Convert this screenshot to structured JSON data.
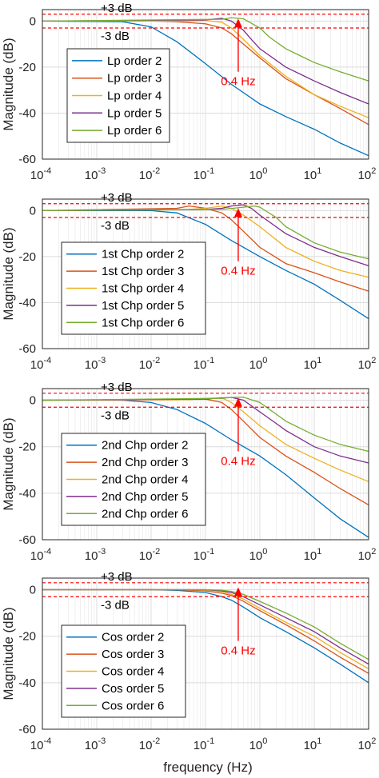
{
  "colors": {
    "order2": "#0072BD",
    "order3": "#D95319",
    "order4": "#EDB120",
    "order5": "#7E2F8E",
    "order6": "#77AC30",
    "threshold": "#ff0000",
    "annotation": "#ff0000",
    "grid": "#dcdcdc",
    "axis": "#262626"
  },
  "xlabel": "frequency (Hz)",
  "chart_data": [
    {
      "type": "line",
      "xscale": "log",
      "xlim": [
        0.0001,
        100
      ],
      "ylim": [
        -60,
        5
      ],
      "ylabel": "Magnitude (dB)",
      "xticks": [
        0.0001,
        0.001,
        0.01,
        0.1,
        1,
        10,
        100
      ],
      "xticklabels": [
        {
          "b": "10",
          "e": "-4"
        },
        {
          "b": "10",
          "e": "-3"
        },
        {
          "b": "10",
          "e": "-2"
        },
        {
          "b": "10",
          "e": "-1"
        },
        {
          "b": "10",
          "e": "0"
        },
        {
          "b": "10",
          "e": "1"
        },
        {
          "b": "10",
          "e": "2"
        }
      ],
      "yticks": [
        0,
        -20,
        -40,
        -60
      ],
      "yticklabels": [
        "0",
        "-20",
        "-40",
        "-60"
      ],
      "grid": true,
      "legend_position": "bottom-left",
      "reference_lines": [
        {
          "y": 3,
          "label": "+3 dB"
        },
        {
          "y": -3,
          "label": "-3 dB"
        }
      ],
      "annotation": {
        "text": "0.4 Hz",
        "x": 0.4
      },
      "series": [
        {
          "name": "Lp order 2",
          "x": [
            0.0001,
            0.003,
            0.01,
            0.03,
            0.1,
            0.3,
            1,
            3,
            10,
            30,
            100
          ],
          "y": [
            0,
            -0.3,
            -2.5,
            -9,
            -18.5,
            -27.5,
            -36,
            -41.5,
            -47,
            -53,
            -58.5
          ]
        },
        {
          "name": "Lp order 3",
          "x": [
            0.0001,
            0.01,
            0.03,
            0.1,
            0.2,
            0.3,
            0.5,
            1,
            3,
            10,
            30,
            100
          ],
          "y": [
            0,
            0,
            -0.3,
            -1.2,
            -3,
            -5.5,
            -10,
            -16,
            -25,
            -32,
            -38,
            -45
          ]
        },
        {
          "name": "Lp order 4",
          "x": [
            0.0001,
            0.05,
            0.1,
            0.2,
            0.3,
            0.5,
            1,
            3,
            10,
            30,
            100
          ],
          "y": [
            0,
            0,
            0.3,
            -0.5,
            -3,
            -8,
            -15,
            -24,
            -32,
            -37,
            -42
          ]
        },
        {
          "name": "Lp order 5",
          "x": [
            0.0001,
            0.1,
            0.2,
            0.3,
            0.5,
            0.7,
            1,
            3,
            10,
            30,
            100
          ],
          "y": [
            0,
            0.5,
            1.2,
            0,
            -4,
            -8,
            -12,
            -20,
            -26,
            -31,
            -36
          ]
        },
        {
          "name": "Lp order 6",
          "x": [
            0.0001,
            0.2,
            0.3,
            0.5,
            1,
            1.5,
            3,
            10,
            30,
            100
          ],
          "y": [
            0,
            0.8,
            1.5,
            1,
            -3,
            -7,
            -12,
            -18,
            -22,
            -26
          ]
        }
      ]
    },
    {
      "type": "line",
      "xscale": "log",
      "xlim": [
        0.0001,
        100
      ],
      "ylim": [
        -60,
        5
      ],
      "ylabel": "Magnitude (dB)",
      "xticks": [
        0.0001,
        0.001,
        0.01,
        0.1,
        1,
        10,
        100
      ],
      "xticklabels": [
        {
          "b": "10",
          "e": "-4"
        },
        {
          "b": "10",
          "e": "-3"
        },
        {
          "b": "10",
          "e": "-2"
        },
        {
          "b": "10",
          "e": "-1"
        },
        {
          "b": "10",
          "e": "0"
        },
        {
          "b": "10",
          "e": "1"
        },
        {
          "b": "10",
          "e": "2"
        }
      ],
      "yticks": [
        0,
        -20,
        -40,
        -60
      ],
      "yticklabels": [
        "0",
        "-20",
        "-40",
        "-60"
      ],
      "grid": true,
      "legend_position": "bottom-left",
      "reference_lines": [
        {
          "y": 3,
          "label": "+3 dB"
        },
        {
          "y": -3,
          "label": "-3 dB"
        }
      ],
      "annotation": {
        "text": "0.4 Hz",
        "x": 0.4
      },
      "series": [
        {
          "name": "1st Chp order 2",
          "x": [
            0.0001,
            0.003,
            0.01,
            0.03,
            0.1,
            0.3,
            1,
            3,
            10,
            30,
            100
          ],
          "y": [
            0,
            0,
            0,
            -1,
            -6,
            -13,
            -20,
            -26,
            -32,
            -39,
            -47
          ]
        },
        {
          "name": "1st Chp order 3",
          "x": [
            0.0001,
            0.03,
            0.05,
            0.1,
            0.2,
            0.3,
            0.5,
            1,
            3,
            10,
            30,
            100
          ],
          "y": [
            0,
            1,
            2,
            1,
            -1,
            -4,
            -9,
            -16,
            -23,
            -27,
            -31,
            -35
          ]
        },
        {
          "name": "1st Chp order 4",
          "x": [
            0.0001,
            0.05,
            0.1,
            0.2,
            0.3,
            0.5,
            1,
            3,
            10,
            30,
            100
          ],
          "y": [
            0,
            0.5,
            1,
            2,
            1,
            -2,
            -7,
            -16,
            -22,
            -26,
            -29
          ]
        },
        {
          "name": "1st Chp order 5",
          "x": [
            0.0001,
            0.1,
            0.2,
            0.3,
            0.5,
            0.7,
            1,
            3,
            10,
            30,
            100
          ],
          "y": [
            0,
            0.5,
            1,
            2,
            2.5,
            1,
            -2,
            -10,
            -16,
            -20,
            -24
          ]
        },
        {
          "name": "1st Chp order 6",
          "x": [
            0.0001,
            0.2,
            0.5,
            0.8,
            1,
            2,
            3,
            10,
            30,
            100
          ],
          "y": [
            0,
            0.5,
            1.5,
            2,
            1.5,
            -3,
            -7,
            -14,
            -18,
            -21
          ]
        }
      ]
    },
    {
      "type": "line",
      "xscale": "log",
      "xlim": [
        0.0001,
        100
      ],
      "ylim": [
        -60,
        5
      ],
      "ylabel": "Magnitude (dB)",
      "xticks": [
        0.0001,
        0.001,
        0.01,
        0.1,
        1,
        10,
        100
      ],
      "xticklabels": [
        {
          "b": "10",
          "e": "-4"
        },
        {
          "b": "10",
          "e": "-3"
        },
        {
          "b": "10",
          "e": "-2"
        },
        {
          "b": "10",
          "e": "-1"
        },
        {
          "b": "10",
          "e": "0"
        },
        {
          "b": "10",
          "e": "1"
        },
        {
          "b": "10",
          "e": "2"
        }
      ],
      "yticks": [
        0,
        -20,
        -40,
        -60
      ],
      "yticklabels": [
        "0",
        "-20",
        "-40",
        "-60"
      ],
      "grid": true,
      "legend_position": "bottom-left",
      "reference_lines": [
        {
          "y": 3,
          "label": "+3 dB"
        },
        {
          "y": -3,
          "label": "-3 dB"
        }
      ],
      "annotation": {
        "text": "0.4 Hz",
        "x": 0.4
      },
      "series": [
        {
          "name": "2nd Chp order 2",
          "x": [
            0.0001,
            0.003,
            0.01,
            0.03,
            0.1,
            0.3,
            1,
            3,
            10,
            30,
            100
          ],
          "y": [
            0,
            0,
            -1,
            -4,
            -10,
            -17,
            -24,
            -32,
            -42,
            -51,
            -59
          ]
        },
        {
          "name": "2nd Chp order 3",
          "x": [
            0.0001,
            0.03,
            0.1,
            0.2,
            0.3,
            0.5,
            1,
            3,
            10,
            30,
            100
          ],
          "y": [
            0,
            0.2,
            0.5,
            -1,
            -4,
            -9,
            -16,
            -24,
            -31,
            -38,
            -45
          ]
        },
        {
          "name": "2nd Chp order 4",
          "x": [
            0.0001,
            0.05,
            0.1,
            0.2,
            0.3,
            0.5,
            1,
            3,
            10,
            30,
            100
          ],
          "y": [
            0,
            0.3,
            0.8,
            1,
            -1,
            -5,
            -11,
            -19,
            -25,
            -30,
            -35
          ]
        },
        {
          "name": "2nd Chp order 5",
          "x": [
            0.0001,
            0.1,
            0.2,
            0.3,
            0.5,
            1,
            2,
            3,
            10,
            30,
            100
          ],
          "y": [
            0,
            0.5,
            1,
            1.2,
            0,
            -5,
            -10,
            -13,
            -20,
            -24,
            -27
          ]
        },
        {
          "name": "2nd Chp order 6",
          "x": [
            0.0001,
            0.2,
            0.3,
            0.5,
            1,
            2,
            3,
            10,
            30,
            100
          ],
          "y": [
            0,
            0.8,
            1.2,
            1.3,
            -1,
            -6,
            -9,
            -15,
            -19,
            -22
          ]
        }
      ]
    },
    {
      "type": "line",
      "xscale": "log",
      "xlim": [
        0.0001,
        100
      ],
      "ylim": [
        -60,
        5
      ],
      "ylabel": "Magnitude (dB)",
      "xticks": [
        0.0001,
        0.001,
        0.01,
        0.1,
        1,
        10,
        100
      ],
      "xticklabels": [
        {
          "b": "10",
          "e": "-4"
        },
        {
          "b": "10",
          "e": "-3"
        },
        {
          "b": "10",
          "e": "-2"
        },
        {
          "b": "10",
          "e": "-1"
        },
        {
          "b": "10",
          "e": "0"
        },
        {
          "b": "10",
          "e": "1"
        },
        {
          "b": "10",
          "e": "2"
        }
      ],
      "yticks": [
        0,
        -20,
        -40,
        -60
      ],
      "yticklabels": [
        "0",
        "-20",
        "-40",
        "-60"
      ],
      "grid": true,
      "legend_position": "bottom-left",
      "reference_lines": [
        {
          "y": 3,
          "label": "+3 dB"
        },
        {
          "y": -3,
          "label": "-3 dB"
        }
      ],
      "annotation": {
        "text": "0.4 Hz",
        "x": 0.4
      },
      "series": [
        {
          "name": "Cos order 2",
          "x": [
            0.0001,
            0.01,
            0.03,
            0.1,
            0.2,
            0.3,
            0.5,
            1,
            3,
            10,
            30,
            100
          ],
          "y": [
            0,
            0,
            -0.3,
            -1.2,
            -3,
            -4.5,
            -7.5,
            -12,
            -18,
            -25,
            -32,
            -40
          ]
        },
        {
          "name": "Cos order 3",
          "x": [
            0.0001,
            0.03,
            0.1,
            0.2,
            0.3,
            0.5,
            1,
            3,
            10,
            30,
            100
          ],
          "y": [
            0,
            0,
            -0.5,
            -1.5,
            -2.5,
            -5,
            -9,
            -15,
            -22,
            -29,
            -36
          ]
        },
        {
          "name": "Cos order 4",
          "x": [
            0.0001,
            0.05,
            0.1,
            0.2,
            0.3,
            0.5,
            1,
            3,
            10,
            30,
            100
          ],
          "y": [
            0,
            0,
            -0.2,
            -0.8,
            -2,
            -4,
            -8,
            -14,
            -20,
            -27,
            -34
          ]
        },
        {
          "name": "Cos order 5",
          "x": [
            0.0001,
            0.1,
            0.2,
            0.3,
            0.5,
            1,
            3,
            10,
            30,
            100
          ],
          "y": [
            0,
            0,
            -0.5,
            -1.2,
            -3,
            -6.5,
            -12,
            -18,
            -25,
            -32
          ]
        },
        {
          "name": "Cos order 6",
          "x": [
            0.0001,
            0.1,
            0.2,
            0.3,
            0.5,
            1,
            3,
            10,
            30,
            100
          ],
          "y": [
            0,
            0,
            -0.2,
            -0.7,
            -2,
            -5,
            -10,
            -16,
            -23,
            -30
          ]
        }
      ]
    }
  ]
}
